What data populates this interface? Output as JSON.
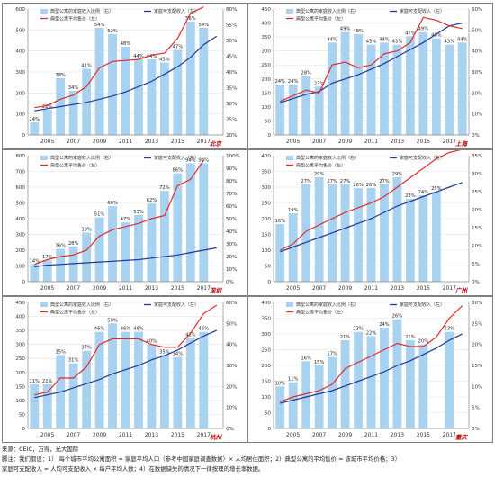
{
  "legend": {
    "bar": "典型公寓的家庭收入比例（右）",
    "income": "家庭可支配收入（左）",
    "price": "典型公寓平均售价（左）"
  },
  "colors": {
    "bar": "#a8d2f0",
    "income": "#1f3a93",
    "price": "#e02a2a",
    "city_label": "#c00000"
  },
  "chart_data": [
    {
      "type": "bar",
      "city": "北京",
      "categories": [
        "2004",
        "2005",
        "2006",
        "2007",
        "2008",
        "2009",
        "2010",
        "2011",
        "2012",
        "2013",
        "2014",
        "2015",
        "2016",
        "2017",
        "2018"
      ],
      "x_tick_labels": [
        "2005",
        "2007",
        "2009",
        "2011",
        "2013",
        "2015",
        "2017"
      ],
      "bars": [
        24,
        28,
        38,
        34,
        41,
        54,
        52,
        48,
        44,
        44,
        43,
        47,
        56,
        54,
        null
      ],
      "income": [
        115,
        125,
        135,
        145,
        155,
        170,
        185,
        205,
        230,
        255,
        290,
        325,
        370,
        430,
        470
      ],
      "price": [
        130,
        140,
        170,
        190,
        230,
        320,
        350,
        355,
        360,
        380,
        390,
        460,
        580,
        610,
        null
      ],
      "ylim_left": [
        0,
        600
      ],
      "yticks_left": [
        0,
        100,
        200,
        300,
        400,
        500,
        600
      ],
      "ylim_right": [
        20,
        60
      ],
      "yticks_right": [
        "20%",
        "25%",
        "30%",
        "35%",
        "40%",
        "45%",
        "50%",
        "55%",
        "60%"
      ]
    },
    {
      "type": "bar",
      "city": "上海",
      "categories": [
        "2004",
        "2005",
        "2006",
        "2007",
        "2008",
        "2009",
        "2010",
        "2011",
        "2012",
        "2013",
        "2014",
        "2015",
        "2016",
        "2017",
        "2018"
      ],
      "x_tick_labels": [
        "2005",
        "2007",
        "2009",
        "2011",
        "2013",
        "2015",
        "2017"
      ],
      "bars": [
        24,
        24,
        28,
        23,
        44,
        49,
        48,
        43,
        44,
        43,
        47,
        49,
        46,
        43,
        44
      ],
      "income": [
        115,
        130,
        145,
        155,
        185,
        200,
        215,
        235,
        255,
        280,
        305,
        330,
        360,
        390,
        400
      ],
      "price": [
        120,
        140,
        160,
        150,
        250,
        260,
        240,
        250,
        290,
        300,
        330,
        420,
        410,
        390,
        380
      ],
      "ylim_left": [
        0,
        450
      ],
      "yticks_left": [
        0,
        50,
        100,
        150,
        200,
        250,
        300,
        350,
        400,
        450
      ],
      "ylim_right": [
        0,
        60
      ],
      "yticks_right": [
        "0%",
        "10%",
        "20%",
        "30%",
        "40%",
        "50%",
        "60%"
      ]
    },
    {
      "type": "bar",
      "city": "深圳",
      "categories": [
        "2004",
        "2005",
        "2006",
        "2007",
        "2008",
        "2009",
        "2010",
        "2011",
        "2012",
        "2013",
        "2014",
        "2015",
        "2016",
        "2017",
        "2018"
      ],
      "x_tick_labels": [
        "2005",
        "2007",
        "2009",
        "2011",
        "2013",
        "2015",
        "2017"
      ],
      "bars": [
        14,
        17,
        26,
        28,
        39,
        51,
        60,
        47,
        53,
        62,
        72,
        86,
        94,
        94,
        null
      ],
      "income": [
        95,
        105,
        110,
        115,
        120,
        125,
        130,
        135,
        140,
        150,
        160,
        170,
        185,
        200,
        215
      ],
      "price": [
        110,
        140,
        160,
        170,
        200,
        290,
        330,
        350,
        370,
        400,
        420,
        610,
        650,
        770,
        null
      ],
      "ylim_left": [
        0,
        800
      ],
      "yticks_left": [
        0,
        100,
        200,
        300,
        400,
        500,
        600,
        700,
        800
      ],
      "ylim_right": [
        0,
        100
      ],
      "yticks_right": [
        "0%",
        "10%",
        "20%",
        "30%",
        "40%",
        "50%",
        "60%",
        "70%",
        "80%",
        "90%",
        "100%"
      ]
    },
    {
      "type": "bar",
      "city": "广州",
      "categories": [
        "2004",
        "2005",
        "2006",
        "2007",
        "2008",
        "2009",
        "2010",
        "2011",
        "2012",
        "2013",
        "2014",
        "2015",
        "2016",
        "2017",
        "2018"
      ],
      "x_tick_labels": [
        "2005",
        "2007",
        "2009",
        "2011",
        "2013",
        "2015",
        "2017"
      ],
      "bars": [
        16,
        19,
        27,
        29,
        27,
        27,
        26,
        26,
        27,
        29,
        23,
        24,
        25,
        null,
        null
      ],
      "income": [
        95,
        110,
        125,
        140,
        155,
        170,
        185,
        200,
        220,
        240,
        255,
        270,
        285,
        300,
        315
      ],
      "price": [
        100,
        120,
        160,
        180,
        200,
        220,
        235,
        250,
        270,
        300,
        330,
        360,
        390,
        410,
        420
      ],
      "ylim_left": [
        0,
        400
      ],
      "yticks_left": [
        0,
        50,
        100,
        150,
        200,
        250,
        300,
        350,
        400
      ],
      "ylim_right": [
        0,
        35
      ],
      "yticks_right": [
        "0%",
        "5%",
        "10%",
        "15%",
        "20%",
        "25%",
        "30%",
        "35%"
      ]
    },
    {
      "type": "bar",
      "city": "杭州",
      "categories": [
        "2004",
        "2005",
        "2006",
        "2007",
        "2008",
        "2009",
        "2010",
        "2011",
        "2012",
        "2013",
        "2014",
        "2015",
        "2016",
        "2017",
        "2018"
      ],
      "x_tick_labels": [
        "2005",
        "2007",
        "2009",
        "2011",
        "2013",
        "2015",
        "2017"
      ],
      "bars": [
        21,
        21,
        35,
        31,
        37,
        46,
        50,
        46,
        46,
        40,
        35,
        34,
        43,
        46,
        null
      ],
      "income": [
        110,
        120,
        130,
        145,
        160,
        175,
        195,
        210,
        225,
        245,
        260,
        280,
        305,
        330,
        350
      ],
      "price": [
        120,
        130,
        180,
        180,
        220,
        300,
        320,
        320,
        320,
        300,
        290,
        290,
        340,
        410,
        440
      ],
      "ylim_left": [
        0,
        450
      ],
      "yticks_left": [
        0,
        50,
        100,
        150,
        200,
        250,
        300,
        350,
        400,
        450
      ],
      "ylim_right": [
        0,
        60
      ],
      "yticks_right": [
        "0%",
        "10%",
        "20%",
        "30%",
        "40%",
        "50%",
        "60%"
      ]
    },
    {
      "type": "bar",
      "city": "重庆",
      "categories": [
        "2004",
        "2005",
        "2006",
        "2007",
        "2008",
        "2009",
        "2010",
        "2011",
        "2012",
        "2013",
        "2014",
        "2015",
        "2016",
        "2017",
        "2018"
      ],
      "x_tick_labels": [
        "2005",
        "2007",
        "2009",
        "2011",
        "2013",
        "2015",
        "2017"
      ],
      "bars": [
        10,
        11,
        16,
        15,
        17,
        21,
        23,
        22,
        24,
        26,
        21,
        20,
        null,
        23,
        null
      ],
      "income": [
        80,
        90,
        100,
        110,
        120,
        135,
        150,
        165,
        180,
        200,
        215,
        235,
        255,
        280,
        300
      ],
      "price": [
        85,
        100,
        110,
        120,
        140,
        190,
        210,
        230,
        250,
        270,
        260,
        260,
        290,
        350,
        390
      ],
      "ylim_left": [
        0,
        400
      ],
      "yticks_left": [
        0,
        50,
        100,
        150,
        200,
        250,
        300,
        350,
        400
      ],
      "ylim_right": [
        0,
        30
      ],
      "yticks_right": [
        "0%",
        "5%",
        "10%",
        "15%",
        "20%",
        "25%",
        "30%"
      ]
    }
  ],
  "footer": {
    "source": "来源：CEIC，万得，光大国际",
    "note_line1": "脚注：我们假设：1） 每个城市平均公寓面积 = 家庭平均人口（参考中国家庭调查数据）× 人均居住面积；2）典型公寓的平均售价 = 该城市平均价格；3）",
    "note_line2": "家庭可支配收入 = 人均可支配收入 × 每户平均人数；4）在数据缺失的情况下一律按理的增长率数据。"
  }
}
